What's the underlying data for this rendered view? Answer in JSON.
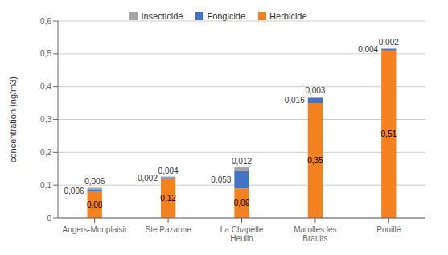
{
  "chart_data": {
    "type": "bar",
    "stacked": true,
    "categories": [
      "Angers-Monplaisir",
      "Ste Pazanne",
      "La Chapelle Heulin",
      "Marolles les Braults",
      "Pouillé"
    ],
    "series": [
      {
        "name": "Herbicide",
        "color": "#F4811F",
        "values": [
          0.08,
          0.12,
          0.09,
          0.35,
          0.51
        ],
        "value_labels": [
          "0,08",
          "0,12",
          "0,09",
          "0,35",
          "0,51"
        ]
      },
      {
        "name": "Fongicide",
        "color": "#4472C4",
        "values": [
          0.006,
          0.002,
          0.053,
          0.016,
          0.004
        ],
        "value_labels": [
          "0,006",
          "0,002",
          "0,053",
          "0,016",
          "0,004"
        ]
      },
      {
        "name": "Insecticide",
        "color": "#A5A5A5",
        "values": [
          0.006,
          0.004,
          0.012,
          0.003,
          0.002
        ],
        "value_labels": [
          "0,006",
          "0,004",
          "0,012",
          "0,003",
          "0,002"
        ]
      }
    ],
    "ylabel": "concentration (ng/m3)",
    "ylim": [
      0,
      0.6
    ],
    "yticks": [
      0,
      {
        "value": 0.1,
        "label": "0,1"
      },
      {
        "value": 0.2,
        "label": "0,2"
      },
      {
        "value": 0.3,
        "label": "0,3"
      },
      {
        "value": 0.4,
        "label": "0,4"
      },
      {
        "value": 0.5,
        "label": "0,5"
      },
      {
        "value": 0.6,
        "label": "0,6"
      }
    ],
    "grid": true,
    "legend": "top",
    "data_labels": true
  }
}
